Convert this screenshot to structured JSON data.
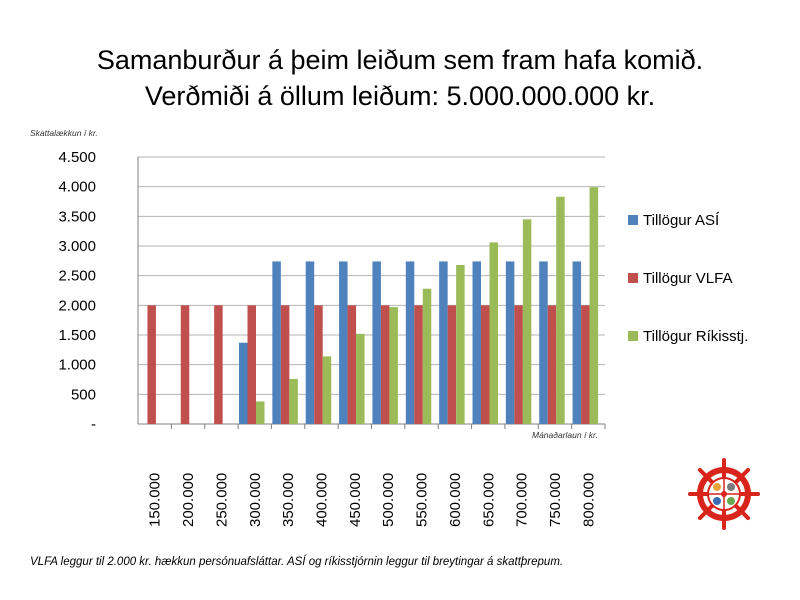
{
  "title": {
    "line1": "Samanburður á þeim leiðum sem fram hafa komið.",
    "line2": "Verðmiði á öllum leiðum: 5.000.000.000 kr."
  },
  "footnote": "VLFA leggur til 2.000 kr. hækkun persónuafsláttar. ASÍ og ríkisstjórnin leggur til breytingar á skattþrepum.",
  "colors": {
    "asi": "#4f81bd",
    "vlfa": "#c0504d",
    "rikisstj": "#9bbb59",
    "grid": "#b3b3b3",
    "logo_red": "#d9241c"
  },
  "logo": {
    "icon": "ship-wheel-logo-icon"
  },
  "chart_data": {
    "type": "bar",
    "ylabel": "Skattalækkun í kr.",
    "xlabel": "Mánaðarlaun í kr.",
    "ylim": [
      0,
      4500
    ],
    "yticks": [
      0,
      500,
      1000,
      1500,
      2000,
      2500,
      3000,
      3500,
      4000,
      4500
    ],
    "ytick_labels": [
      "-",
      "500",
      "1.000",
      "1.500",
      "2.000",
      "2.500",
      "3.000",
      "3.500",
      "4.000",
      "4.500"
    ],
    "grid": true,
    "legend_position": "right",
    "categories": [
      "150.000",
      "200.000",
      "250.000",
      "300.000",
      "350.000",
      "400.000",
      "450.000",
      "500.000",
      "550.000",
      "600.000",
      "650.000",
      "700.000",
      "750.000",
      "800.000"
    ],
    "series": [
      {
        "name": "Tillögur ASÍ",
        "color_key": "asi",
        "values": [
          0,
          0,
          0,
          1370,
          2740,
          2740,
          2740,
          2740,
          2740,
          2740,
          2740,
          2740,
          2740,
          2740
        ]
      },
      {
        "name": "Tillögur VLFA",
        "color_key": "vlfa",
        "values": [
          2000,
          2000,
          2000,
          2000,
          2000,
          2000,
          2000,
          2000,
          2000,
          2000,
          2000,
          2000,
          2000,
          2000
        ]
      },
      {
        "name": "Tillögur Ríkisstj.",
        "color_key": "rikisstj",
        "values": [
          0,
          0,
          0,
          380,
          760,
          1140,
          1520,
          1970,
          2280,
          2680,
          3060,
          3450,
          3830,
          3990
        ]
      }
    ]
  }
}
